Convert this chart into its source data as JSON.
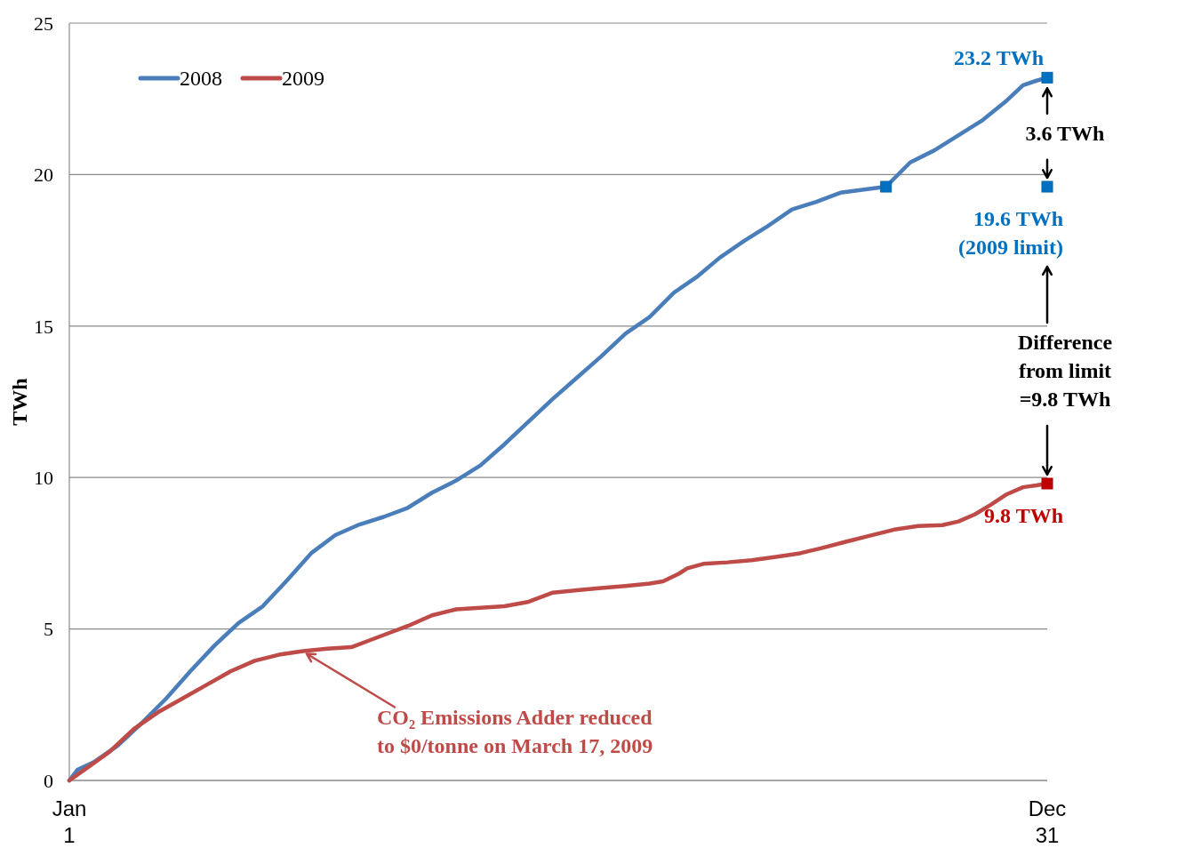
{
  "chart_data": {
    "type": "line",
    "ylabel": "TWh",
    "xlim": [
      "--01-01",
      "--12-31"
    ],
    "ylim": [
      0,
      25
    ],
    "xticks": [
      {
        "value": "--01-01",
        "label": "Jan\n1"
      },
      {
        "value": "--12-31",
        "label": "Dec\n31"
      }
    ],
    "yticks": [
      0,
      5,
      10,
      15,
      20,
      25
    ],
    "grid": "y",
    "legend": "top left",
    "marker": "none",
    "line_style": "solid",
    "series": [
      {
        "name": "2008",
        "color": "#4a7ebb",
        "x": [
          "--01-01",
          "--01-04",
          "--01-10",
          "--01-19",
          "--01-28",
          "--02-06",
          "--02-15",
          "--02-24",
          "--03-05",
          "--03-14",
          "--03-23",
          "--04-01",
          "--04-10",
          "--04-19",
          "--04-28",
          "--05-07",
          "--05-16",
          "--05-25",
          "--06-03",
          "--06-12",
          "--06-21",
          "--06-30",
          "--07-09",
          "--07-18",
          "--07-27",
          "--08-05",
          "--08-14",
          "--08-23",
          "--08-31",
          "--09-09",
          "--09-18",
          "--09-27",
          "--10-06",
          "--10-15",
          "--11-01",
          "--11-10",
          "--11-19",
          "--11-28",
          "--12-07",
          "--12-16",
          "--12-22",
          "--12-27",
          "--12-31"
        ],
        "values": [
          0,
          0.35,
          0.6,
          1.15,
          1.9,
          2.7,
          3.6,
          4.45,
          5.2,
          5.75,
          6.6,
          7.5,
          8.1,
          8.45,
          8.7,
          9.0,
          9.5,
          9.9,
          10.4,
          11.1,
          11.85,
          12.6,
          13.3,
          14.0,
          14.75,
          15.3,
          16.1,
          16.65,
          17.25,
          17.8,
          18.3,
          18.85,
          19.1,
          19.4,
          19.6,
          20.4,
          20.8,
          21.3,
          21.8,
          22.45,
          22.95,
          23.1,
          23.2
        ]
      },
      {
        "name": "2009",
        "color": "#be4b48",
        "x": [
          "--01-01",
          "--01-07",
          "--01-16",
          "--01-25",
          "--02-03",
          "--02-12",
          "--02-21",
          "--03-02",
          "--03-11",
          "--03-20",
          "--03-29",
          "--04-07",
          "--04-16",
          "--04-22",
          "--05-01",
          "--05-07",
          "--05-16",
          "--05-25",
          "--06-03",
          "--06-12",
          "--06-21",
          "--06-30",
          "--07-09",
          "--07-18",
          "--07-27",
          "--08-05",
          "--08-10",
          "--08-16",
          "--08-19",
          "--08-25",
          "--09-03",
          "--09-12",
          "--09-21",
          "--09-30",
          "--10-08",
          "--10-17",
          "--10-26",
          "--11-04",
          "--11-13",
          "--11-22",
          "--11-28",
          "--12-04",
          "--12-10",
          "--12-16",
          "--12-22",
          "--12-27",
          "--12-31"
        ],
        "values": [
          0,
          0.38,
          0.95,
          1.7,
          2.25,
          2.7,
          3.15,
          3.6,
          3.95,
          4.15,
          4.27,
          4.35,
          4.4,
          4.6,
          4.9,
          5.1,
          5.45,
          5.65,
          5.7,
          5.75,
          5.9,
          6.2,
          6.28,
          6.35,
          6.42,
          6.5,
          6.57,
          6.83,
          7.0,
          7.15,
          7.2,
          7.27,
          7.38,
          7.5,
          7.67,
          7.88,
          8.08,
          8.28,
          8.4,
          8.43,
          8.55,
          8.78,
          9.1,
          9.45,
          9.68,
          9.74,
          9.8
        ]
      },
      {
        "type": "scatter",
        "marker": "square",
        "color": "#0070c0",
        "x": [
          "--11-01",
          "--12-31",
          "--12-31"
        ],
        "values": [
          19.6,
          23.2,
          19.6
        ]
      },
      {
        "type": "scatter",
        "marker": "square",
        "color": "#c00000",
        "x": [
          "--12-31"
        ],
        "values": [
          9.8
        ]
      }
    ],
    "annotations": [
      {
        "text": "23.2 TWh",
        "x": "--12-31",
        "y": 23.2
      },
      "3.6 TWh",
      {
        "text": "19.6 TWh\n(2009 limit)",
        "x": "--12-31",
        "y": 19.6
      },
      "Difference\nfrom limit\n=9.8 TWh",
      {
        "text": "9.8 TWh",
        "x": "--12-31",
        "y": 9.8
      },
      {
        "text": "CO₂ Emissions Adder reduced\nto $0/tonne on March 17, 2009",
        "x": "--03-30",
        "y": 4.3
      }
    ]
  }
}
